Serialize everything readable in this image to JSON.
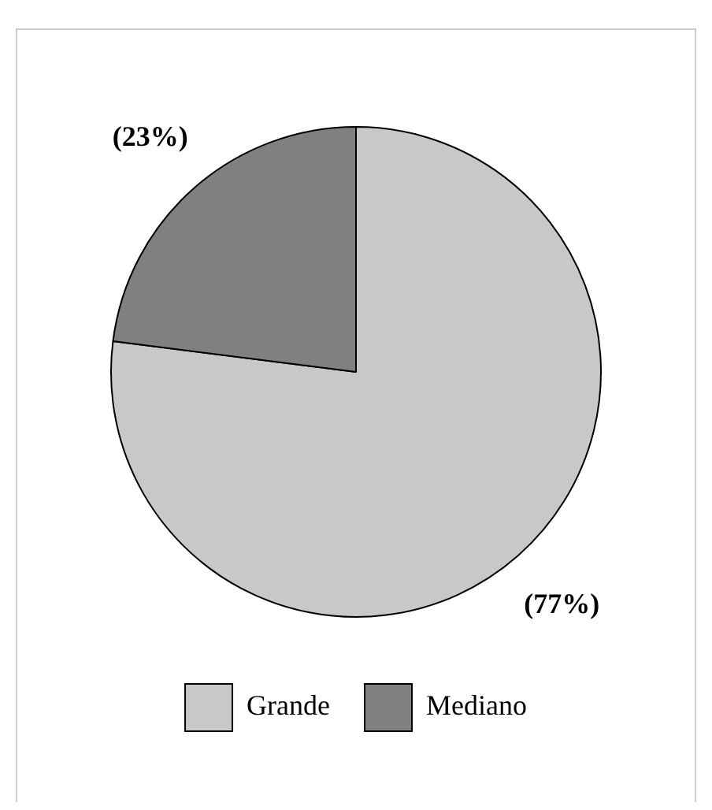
{
  "chart_data": {
    "type": "pie",
    "categories": [
      "Grande",
      "Mediano"
    ],
    "values": [
      77,
      23
    ],
    "colors": [
      "#c8c8c8",
      "#808080"
    ],
    "value_labels": [
      "(77%)",
      "(23%)"
    ],
    "legend": "bottom"
  }
}
